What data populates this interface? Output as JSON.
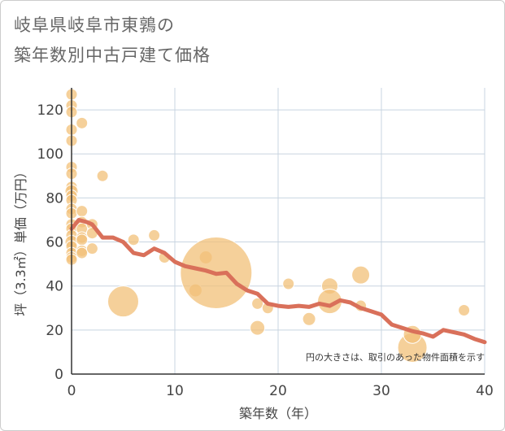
{
  "chart_data": {
    "type": "scatter",
    "title": [
      "岐阜県岐阜市東鶉の",
      "築年数別中古戸建て価格"
    ],
    "xlabel": "築年数（年）",
    "ylabel": "坪（3.3㎡）単価（万円）",
    "xlim": [
      0,
      40
    ],
    "ylim": [
      0,
      130
    ],
    "x_ticks": [
      0,
      10,
      20,
      30,
      40
    ],
    "y_ticks": [
      0,
      20,
      40,
      60,
      80,
      100,
      120
    ],
    "annotation": "円の大きさは、取引のあった物件面積を示す",
    "colors": {
      "bubble": "#f2c078",
      "line": "#d9705a",
      "grid": "#c8d4e0"
    },
    "bubbles": [
      {
        "x": 0,
        "y": 127,
        "s": 7
      },
      {
        "x": 0,
        "y": 122,
        "s": 7
      },
      {
        "x": 0,
        "y": 119,
        "s": 7
      },
      {
        "x": 0,
        "y": 111,
        "s": 7
      },
      {
        "x": 0,
        "y": 106,
        "s": 7
      },
      {
        "x": 0,
        "y": 94,
        "s": 7
      },
      {
        "x": 0,
        "y": 91,
        "s": 7
      },
      {
        "x": 0,
        "y": 85,
        "s": 7
      },
      {
        "x": 0,
        "y": 83,
        "s": 8
      },
      {
        "x": 0,
        "y": 81,
        "s": 7
      },
      {
        "x": 0,
        "y": 79,
        "s": 7
      },
      {
        "x": 0,
        "y": 75,
        "s": 7
      },
      {
        "x": 0,
        "y": 73,
        "s": 7
      },
      {
        "x": 0,
        "y": 68,
        "s": 7
      },
      {
        "x": 0,
        "y": 66,
        "s": 7
      },
      {
        "x": 0,
        "y": 63,
        "s": 7
      },
      {
        "x": 0,
        "y": 60,
        "s": 8
      },
      {
        "x": 0,
        "y": 58,
        "s": 7
      },
      {
        "x": 0,
        "y": 55,
        "s": 7
      },
      {
        "x": 0,
        "y": 53,
        "s": 7
      },
      {
        "x": 0,
        "y": 52,
        "s": 7
      },
      {
        "x": 1,
        "y": 114,
        "s": 7
      },
      {
        "x": 1,
        "y": 74,
        "s": 7
      },
      {
        "x": 1,
        "y": 69,
        "s": 7
      },
      {
        "x": 1,
        "y": 66,
        "s": 7
      },
      {
        "x": 1,
        "y": 62,
        "s": 7
      },
      {
        "x": 1,
        "y": 61,
        "s": 7
      },
      {
        "x": 1,
        "y": 56,
        "s": 7
      },
      {
        "x": 1,
        "y": 55,
        "s": 7
      },
      {
        "x": 2,
        "y": 68,
        "s": 7
      },
      {
        "x": 2,
        "y": 64,
        "s": 7
      },
      {
        "x": 2,
        "y": 57,
        "s": 7
      },
      {
        "x": 3,
        "y": 90,
        "s": 7
      },
      {
        "x": 5,
        "y": 33,
        "s": 19
      },
      {
        "x": 6,
        "y": 61,
        "s": 7
      },
      {
        "x": 8,
        "y": 63,
        "s": 7
      },
      {
        "x": 9,
        "y": 53,
        "s": 7
      },
      {
        "x": 12,
        "y": 38,
        "s": 8
      },
      {
        "x": 13,
        "y": 53,
        "s": 8
      },
      {
        "x": 14,
        "y": 46,
        "s": 44
      },
      {
        "x": 18,
        "y": 32,
        "s": 7
      },
      {
        "x": 18,
        "y": 21,
        "s": 9
      },
      {
        "x": 19,
        "y": 30,
        "s": 7
      },
      {
        "x": 21,
        "y": 41,
        "s": 7
      },
      {
        "x": 23,
        "y": 25,
        "s": 8
      },
      {
        "x": 25,
        "y": 40,
        "s": 10
      },
      {
        "x": 25,
        "y": 33,
        "s": 15
      },
      {
        "x": 28,
        "y": 45,
        "s": 11
      },
      {
        "x": 28,
        "y": 31,
        "s": 7
      },
      {
        "x": 33,
        "y": 12,
        "s": 18
      },
      {
        "x": 33,
        "y": 18,
        "s": 11
      },
      {
        "x": 38,
        "y": 29,
        "s": 7
      }
    ],
    "trend": [
      {
        "x": 0,
        "y": 66
      },
      {
        "x": 0.7,
        "y": 70
      },
      {
        "x": 1.5,
        "y": 69
      },
      {
        "x": 2,
        "y": 68
      },
      {
        "x": 3,
        "y": 62
      },
      {
        "x": 4,
        "y": 62
      },
      {
        "x": 5,
        "y": 60
      },
      {
        "x": 6,
        "y": 55
      },
      {
        "x": 7,
        "y": 54
      },
      {
        "x": 8,
        "y": 57
      },
      {
        "x": 9,
        "y": 55
      },
      {
        "x": 10,
        "y": 51
      },
      {
        "x": 11,
        "y": 49
      },
      {
        "x": 12,
        "y": 48
      },
      {
        "x": 13,
        "y": 47
      },
      {
        "x": 14,
        "y": 45.5
      },
      {
        "x": 15,
        "y": 46
      },
      {
        "x": 16,
        "y": 41
      },
      {
        "x": 17,
        "y": 38
      },
      {
        "x": 18,
        "y": 36.5
      },
      {
        "x": 19,
        "y": 32
      },
      {
        "x": 20,
        "y": 31
      },
      {
        "x": 21,
        "y": 30.5
      },
      {
        "x": 22,
        "y": 31
      },
      {
        "x": 23,
        "y": 30.5
      },
      {
        "x": 24,
        "y": 32
      },
      {
        "x": 25,
        "y": 31
      },
      {
        "x": 26,
        "y": 33.5
      },
      {
        "x": 27,
        "y": 32.5
      },
      {
        "x": 28,
        "y": 30
      },
      {
        "x": 29,
        "y": 28.5
      },
      {
        "x": 30,
        "y": 27
      },
      {
        "x": 31,
        "y": 22.5
      },
      {
        "x": 32,
        "y": 21
      },
      {
        "x": 33,
        "y": 19.5
      },
      {
        "x": 34,
        "y": 18.5
      },
      {
        "x": 35,
        "y": 17
      },
      {
        "x": 36,
        "y": 20
      },
      {
        "x": 37,
        "y": 19
      },
      {
        "x": 38,
        "y": 18
      },
      {
        "x": 39,
        "y": 16
      },
      {
        "x": 40,
        "y": 14.5
      }
    ]
  }
}
